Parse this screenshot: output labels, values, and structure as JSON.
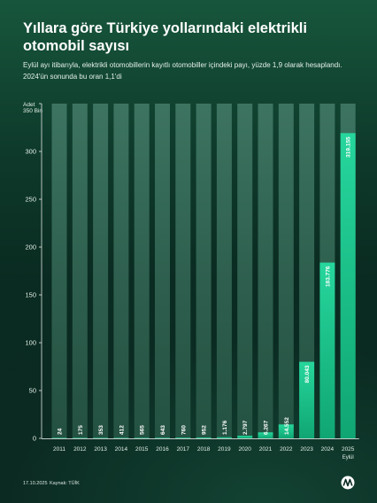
{
  "header": {
    "title": "Yıllara göre Türkiye yollarındaki elektrikli otomobil sayısı",
    "subtitle": "Eylül ayı itibarıyla, elektrikli otomobillerin kayıtlı otomobiller içindeki payı, yüzde 1,9 olarak hesaplandı. 2024'ün sonunda bu oran 1,1'di"
  },
  "chart_data": {
    "type": "bar",
    "title": "Yıllara göre Türkiye yollarındaki elektrikli otomobil sayısı",
    "ylabel_top": "Adet",
    "ylabel_bottom": "350 Bin",
    "ylim": [
      0,
      350000
    ],
    "yticks": [
      0,
      50000,
      100000,
      150000,
      200000,
      250000,
      300000,
      350000
    ],
    "ytick_labels": [
      "0",
      "50",
      "100",
      "150",
      "200",
      "250",
      "300",
      ""
    ],
    "categories": [
      "2011",
      "2012",
      "2013",
      "2014",
      "2015",
      "2016",
      "2017",
      "2018",
      "2019",
      "2020",
      "2021",
      "2022",
      "2023",
      "2024",
      "2025"
    ],
    "category_notes": [
      "",
      "",
      "",
      "",
      "",
      "",
      "",
      "",
      "",
      "",
      "",
      "",
      "",
      "",
      "Eylül"
    ],
    "values": [
      24,
      175,
      353,
      412,
      565,
      643,
      760,
      952,
      1176,
      2797,
      6267,
      14552,
      80043,
      183776,
      319155
    ],
    "value_labels": [
      "24",
      "175",
      "353",
      "412",
      "565",
      "643",
      "760",
      "952",
      "1.176",
      "2.797",
      "6.267",
      "14.552",
      "80.043",
      "183.776",
      "319.155"
    ],
    "grid": false,
    "legend": "none",
    "colors": {
      "bar_fill": "#1bc08a",
      "bar_fill_top": "#25d49a",
      "bar_background": "#3a6e5c",
      "axis": "#ffffff"
    }
  },
  "footer": {
    "date": "17.10.2025",
    "source": "Kaynak: TÜİK"
  },
  "brand": {
    "logo_icon": "aa-logo-icon"
  }
}
